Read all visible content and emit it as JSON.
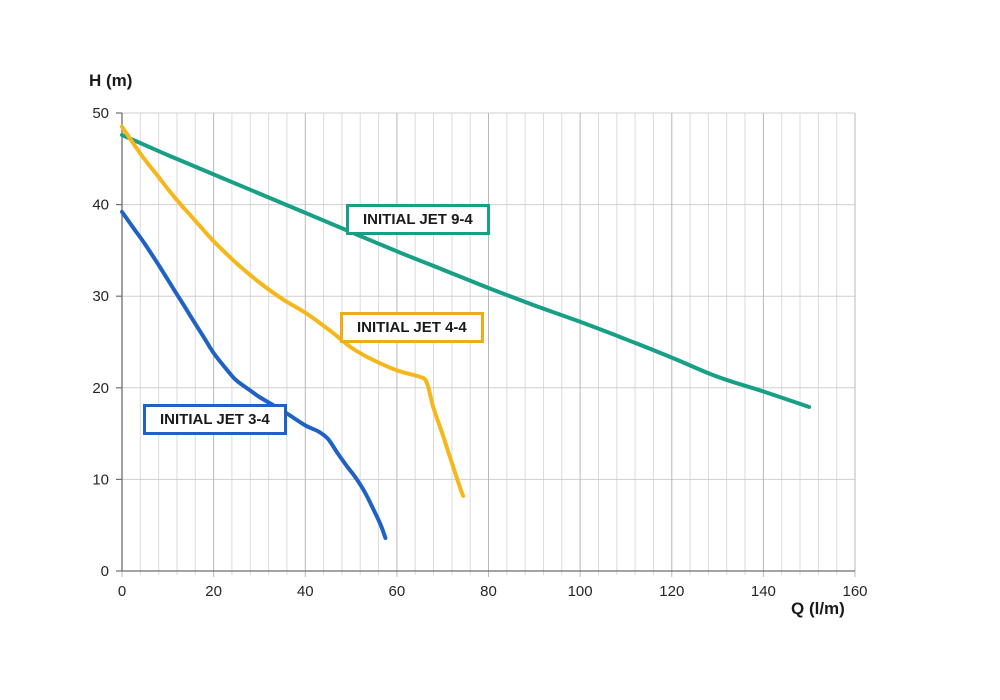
{
  "chart_data": {
    "type": "line",
    "title": "",
    "xlabel": "Q (l/m)",
    "ylabel": "H (m)",
    "x_axis": {
      "min": 0,
      "max": 160,
      "major_step": 20,
      "minor_step": 4,
      "tick_labels": [
        "0",
        "20",
        "40",
        "60",
        "80",
        "100",
        "120",
        "140",
        "160"
      ]
    },
    "y_axis": {
      "min": 0,
      "max": 50,
      "major_step": 10,
      "tick_labels": [
        "0",
        "10",
        "20",
        "30",
        "40",
        "50"
      ]
    },
    "grid": {
      "vertical_minor": true,
      "vertical_major": true,
      "horizontal_major": true
    },
    "legend_position": "inline-label-boxes",
    "colors": {
      "grid_minor": "#DBDBDB",
      "grid_major_vertical": "#B8B8B8",
      "grid_major_horizontal": "#CFCFCF",
      "axis_line": "#6E6E6E",
      "tick_label": "#262626"
    },
    "series": [
      {
        "name": "INITIAL JET 9-4",
        "color": "#18A086",
        "points": [
          [
            0,
            47.6
          ],
          [
            10,
            45.4
          ],
          [
            20,
            43.3
          ],
          [
            30,
            41.2
          ],
          [
            40,
            39.1
          ],
          [
            50,
            37.0
          ],
          [
            60,
            34.9
          ],
          [
            70,
            32.9
          ],
          [
            80,
            30.9
          ],
          [
            90,
            29.0
          ],
          [
            100,
            27.2
          ],
          [
            110,
            25.3
          ],
          [
            120,
            23.3
          ],
          [
            130,
            21.2
          ],
          [
            140,
            19.6
          ],
          [
            150,
            17.9
          ]
        ]
      },
      {
        "name": "INITIAL JET 4-4",
        "color": "#F6B71C",
        "points": [
          [
            0,
            48.5
          ],
          [
            3,
            46.3
          ],
          [
            5,
            44.9
          ],
          [
            8,
            43.0
          ],
          [
            10,
            41.7
          ],
          [
            13,
            39.9
          ],
          [
            15,
            38.8
          ],
          [
            18,
            37.1
          ],
          [
            20,
            36.0
          ],
          [
            25,
            33.6
          ],
          [
            30,
            31.5
          ],
          [
            35,
            29.7
          ],
          [
            40,
            28.2
          ],
          [
            45,
            26.4
          ],
          [
            48,
            25.2
          ],
          [
            50,
            24.4
          ],
          [
            53,
            23.5
          ],
          [
            55,
            23.0
          ],
          [
            58,
            22.3
          ],
          [
            60,
            21.9
          ],
          [
            62,
            21.6
          ],
          [
            65,
            21.2
          ],
          [
            66.5,
            20.6
          ],
          [
            68,
            17.8
          ],
          [
            70,
            14.9
          ],
          [
            72,
            11.8
          ],
          [
            74,
            8.8
          ],
          [
            74.5,
            8.2
          ]
        ]
      },
      {
        "name": "INITIAL JET 3-4",
        "color": "#2062C4",
        "points": [
          [
            0,
            39.2
          ],
          [
            3,
            37.1
          ],
          [
            5,
            35.7
          ],
          [
            8,
            33.4
          ],
          [
            10,
            31.8
          ],
          [
            13,
            29.4
          ],
          [
            15,
            27.8
          ],
          [
            18,
            25.4
          ],
          [
            20,
            23.8
          ],
          [
            23,
            21.9
          ],
          [
            25,
            20.8
          ],
          [
            28,
            19.7
          ],
          [
            30,
            19.0
          ],
          [
            33,
            18.1
          ],
          [
            36,
            17.2
          ],
          [
            40,
            15.9
          ],
          [
            43,
            15.2
          ],
          [
            45,
            14.4
          ],
          [
            47,
            12.9
          ],
          [
            49,
            11.5
          ],
          [
            51,
            10.2
          ],
          [
            53,
            8.6
          ],
          [
            55,
            6.6
          ],
          [
            56.5,
            5.0
          ],
          [
            57.5,
            3.6
          ]
        ]
      }
    ],
    "annotations": [
      {
        "label": "INITIAL JET 9-4",
        "border_color": "#18A086",
        "anchor_q": 49.0,
        "anchor_h": 40.1
      },
      {
        "label": "INITIAL JET 4-4",
        "border_color": "#EFAB1E",
        "anchor_q": 47.6,
        "anchor_h": 28.3
      },
      {
        "label": "INITIAL JET 3-4",
        "border_color": "#2062C4",
        "anchor_q": 4.6,
        "anchor_h": 18.2
      }
    ]
  }
}
